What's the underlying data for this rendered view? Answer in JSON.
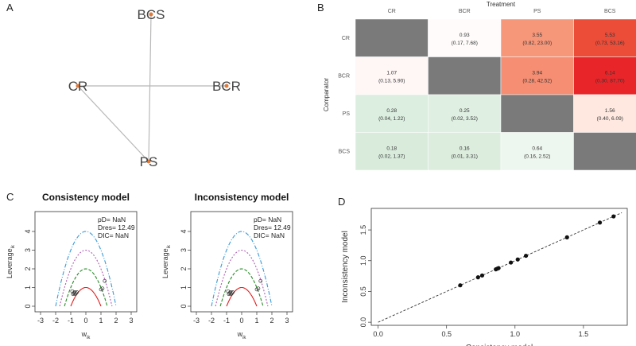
{
  "panel_letters": {
    "a": "A",
    "b": "B",
    "c": "C",
    "d": "D"
  },
  "colors": {
    "heat_gray": "#777777",
    "heat_diag": "#7a7a7a",
    "curve_red": "#e01e1e",
    "curve_green": "#2a8a2a",
    "curve_purple": "#b05fb5",
    "curve_blue": "#3a9ad9"
  },
  "chart_data": [
    {
      "id": "A",
      "type": "network",
      "nodes": [
        "BCS",
        "CR",
        "BCR",
        "PS"
      ],
      "edges": [
        [
          "BCS",
          "PS"
        ],
        [
          "CR",
          "BCR"
        ],
        [
          "CR",
          "PS"
        ]
      ]
    },
    {
      "id": "B",
      "type": "heatmap",
      "title": "Treatment",
      "ylabel": "Comparator",
      "columns": [
        "CR",
        "BCR",
        "PS",
        "BCS"
      ],
      "rows": [
        "CR",
        "BCR",
        "PS",
        "BCS"
      ],
      "cells": [
        [
          null,
          {
            "v": "0.93",
            "ci": "(0.17, 7.68)"
          },
          {
            "v": "3.55",
            "ci": "(0.82, 23.00)"
          },
          {
            "v": "5.53",
            "ci": "(0.73, 53.16)"
          }
        ],
        [
          {
            "v": "1.07",
            "ci": "(0.13, 5.90)"
          },
          null,
          {
            "v": "3.94",
            "ci": "(0.28, 42.52)"
          },
          {
            "v": "6.14",
            "ci": "(0.30, 87.70)"
          }
        ],
        [
          {
            "v": "0.28",
            "ci": "(0.04, 1.22)"
          },
          {
            "v": "0.25",
            "ci": "(0.02, 3.52)"
          },
          null,
          {
            "v": "1.56",
            "ci": "(0.40, 6.09)"
          }
        ],
        [
          {
            "v": "0.18",
            "ci": "(0.02, 1.37)"
          },
          {
            "v": "0.16",
            "ci": "(0.01, 3.31)"
          },
          {
            "v": "0.64",
            "ci": "(0.16, 2.52)"
          },
          null
        ]
      ]
    },
    {
      "id": "C1",
      "type": "scatter",
      "title": "Consistency model",
      "xlabel": "w",
      "xlabel_sub": "ik",
      "ylabel": "Leverage",
      "ylabel_sub": "ik",
      "xlim": [
        -3,
        3
      ],
      "ylim": [
        0,
        4
      ],
      "xticks": [
        "-3",
        "-2",
        "-1",
        "0",
        "1",
        "2",
        "3"
      ],
      "yticks": [
        "0",
        "1",
        "2",
        "3",
        "4"
      ],
      "stats": [
        "pD= NaN",
        "Dres= 12.49",
        "DIC= NaN"
      ],
      "curves": [
        1,
        2,
        3,
        4
      ],
      "points": [
        [
          -0.9,
          0.8
        ],
        [
          -0.8,
          0.7
        ],
        [
          -0.75,
          0.75
        ],
        [
          -0.7,
          0.65
        ],
        [
          -0.65,
          0.7
        ],
        [
          -0.6,
          0.75
        ],
        [
          -0.85,
          0.65
        ],
        [
          1.0,
          0.9
        ],
        [
          1.1,
          0.95
        ],
        [
          1.25,
          1.35
        ]
      ]
    },
    {
      "id": "C2",
      "type": "scatter",
      "title": "Inconsistency model",
      "xlabel": "w",
      "xlabel_sub": "ik",
      "ylabel": "Leverage",
      "ylabel_sub": "ik",
      "xlim": [
        -3,
        3
      ],
      "ylim": [
        0,
        4
      ],
      "xticks": [
        "-3",
        "-2",
        "-1",
        "0",
        "1",
        "2",
        "3"
      ],
      "yticks": [
        "0",
        "1",
        "2",
        "3",
        "4"
      ],
      "stats": [
        "pD= NaN",
        "Dres= 12.49",
        "DIC= NaN"
      ],
      "curves": [
        1,
        2,
        3,
        4
      ],
      "points": [
        [
          -0.9,
          0.8
        ],
        [
          -0.8,
          0.7
        ],
        [
          -0.75,
          0.75
        ],
        [
          -0.7,
          0.65
        ],
        [
          -0.65,
          0.7
        ],
        [
          -0.6,
          0.75
        ],
        [
          -0.85,
          0.65
        ],
        [
          1.0,
          0.9
        ],
        [
          1.1,
          0.95
        ],
        [
          1.25,
          1.35
        ]
      ]
    },
    {
      "id": "D",
      "type": "scatter",
      "xlabel": "Consistency model",
      "ylabel": "Inconsistency model",
      "xlim": [
        -0.05,
        1.82
      ],
      "ylim": [
        -0.05,
        1.85
      ],
      "xticks": [
        0.0,
        0.5,
        1.0,
        1.5
      ],
      "yticks": [
        0.0,
        0.5,
        1.0,
        1.5
      ],
      "tick_labels_x": [
        "0.0",
        "0.5",
        "1.0",
        "1.5"
      ],
      "tick_labels_y": [
        "0.0",
        "0.5",
        "1.0",
        "1.5"
      ],
      "points": [
        [
          0.6,
          0.6
        ],
        [
          0.73,
          0.73
        ],
        [
          0.76,
          0.76
        ],
        [
          0.86,
          0.86
        ],
        [
          0.87,
          0.87
        ],
        [
          0.88,
          0.88
        ],
        [
          0.97,
          0.97
        ],
        [
          1.02,
          1.02
        ],
        [
          1.08,
          1.08
        ],
        [
          1.38,
          1.38
        ],
        [
          1.62,
          1.62
        ],
        [
          1.72,
          1.72
        ]
      ]
    }
  ]
}
